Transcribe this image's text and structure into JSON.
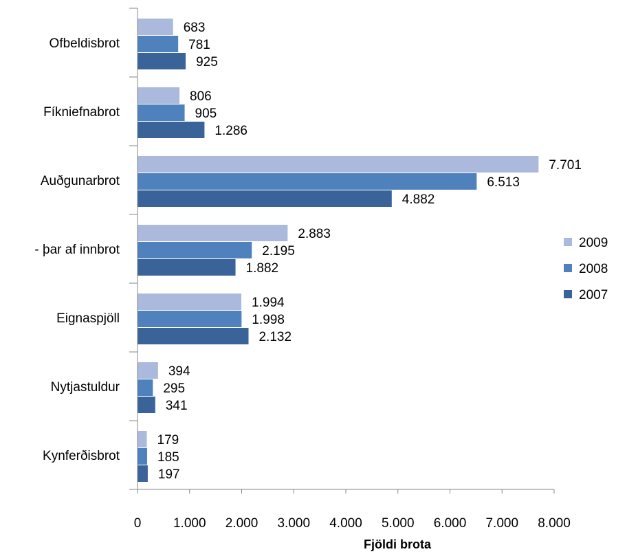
{
  "chart_data": {
    "type": "bar",
    "orientation": "horizontal",
    "categories": [
      "Ofbeldisbrot",
      "Fíkniefnabrot",
      "Auðgunarbrot",
      "- þar af innbrot",
      "Eignaspjöll",
      "Nytjastuldur",
      "Kynferðisbrot"
    ],
    "series": [
      {
        "name": "2009",
        "color": "#aab9dc",
        "values": [
          683,
          806,
          7701,
          2883,
          1994,
          394,
          179
        ],
        "labels": [
          "683",
          "806",
          "7.701",
          "2.883",
          "1.994",
          "394",
          "179"
        ]
      },
      {
        "name": "2008",
        "color": "#4f81bd",
        "values": [
          781,
          905,
          6513,
          2195,
          1998,
          295,
          185
        ],
        "labels": [
          "781",
          "905",
          "6.513",
          "2.195",
          "1.998",
          "295",
          "185"
        ]
      },
      {
        "name": "2007",
        "color": "#3a6499",
        "values": [
          925,
          1286,
          4882,
          1882,
          2132,
          341,
          197
        ],
        "labels": [
          "925",
          "1.286",
          "4.882",
          "1.882",
          "2.132",
          "341",
          "197"
        ]
      }
    ],
    "x_ticks": [
      0,
      1000,
      2000,
      3000,
      4000,
      5000,
      6000,
      7000,
      8000
    ],
    "x_tick_labels": [
      "0",
      "1.000",
      "2.000",
      "3.000",
      "4.000",
      "5.000",
      "6.000",
      "7.000",
      "8.000"
    ],
    "xlabel": "Fjöldi brota",
    "ylabel": "",
    "title": "",
    "xlim": [
      0,
      8000
    ],
    "grid": false,
    "legend_position": "right"
  }
}
